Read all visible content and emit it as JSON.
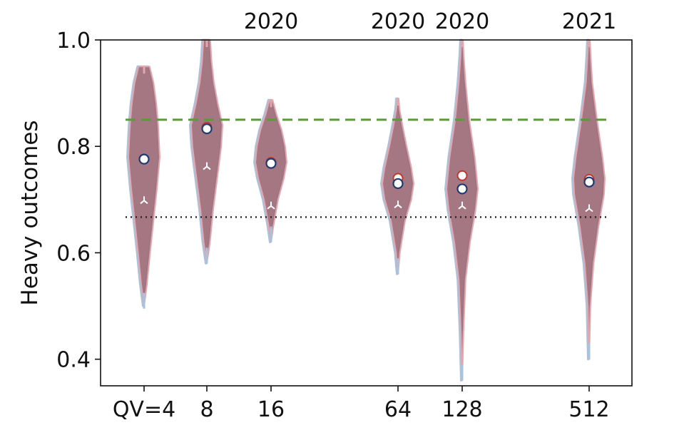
{
  "chart_data": {
    "type": "violin",
    "ylabel": "Heavy outcomes",
    "ylim": [
      0.35,
      1.0
    ],
    "yticks": [
      0.4,
      0.6,
      0.8,
      1.0
    ],
    "ytick_labels": [
      "0.4",
      "0.6",
      "0.8",
      "1.0"
    ],
    "xlabels": [
      "QV=4",
      "8",
      "16",
      "64",
      "128",
      "512"
    ],
    "year_labels": [
      "",
      "",
      "2020",
      "2020",
      "2020",
      "2021"
    ],
    "reference_lines": [
      {
        "style": "dashed",
        "color": "#5a9a3a",
        "y": 0.85
      },
      {
        "style": "dotted",
        "color": "#222222",
        "y": 0.667
      }
    ],
    "violins": [
      {
        "x_label": "QV=4",
        "min": 0.495,
        "max": 0.95,
        "profile": [
          [
            0.5,
            0.0
          ],
          [
            0.54,
            0.18
          ],
          [
            0.6,
            0.38
          ],
          [
            0.66,
            0.6
          ],
          [
            0.72,
            0.82
          ],
          [
            0.78,
            1.0
          ],
          [
            0.84,
            0.9
          ],
          [
            0.88,
            0.78
          ],
          [
            0.92,
            0.6
          ],
          [
            0.95,
            0.35
          ]
        ],
        "mean_red": 0.776,
        "mean_blue": 0.776,
        "median": 0.698
      },
      {
        "x_label": "8",
        "min": 0.58,
        "max": 1.0,
        "profile": [
          [
            0.58,
            0.0
          ],
          [
            0.62,
            0.2
          ],
          [
            0.68,
            0.4
          ],
          [
            0.74,
            0.66
          ],
          [
            0.8,
            0.92
          ],
          [
            0.84,
            1.0
          ],
          [
            0.88,
            0.7
          ],
          [
            0.92,
            0.45
          ],
          [
            0.96,
            0.3
          ],
          [
            1.0,
            0.22
          ]
        ],
        "mean_red": 0.836,
        "mean_blue": 0.833,
        "median": 0.762
      },
      {
        "x_label": "16",
        "min": 0.62,
        "max": 0.887,
        "profile": [
          [
            0.62,
            0.0
          ],
          [
            0.65,
            0.15
          ],
          [
            0.7,
            0.45
          ],
          [
            0.74,
            0.82
          ],
          [
            0.77,
            1.0
          ],
          [
            0.8,
            0.9
          ],
          [
            0.83,
            0.68
          ],
          [
            0.86,
            0.35
          ],
          [
            0.887,
            0.1
          ]
        ],
        "mean_red": 0.77,
        "mean_blue": 0.768,
        "median": 0.688
      },
      {
        "x_label": "64",
        "min": 0.56,
        "max": 0.89,
        "profile": [
          [
            0.56,
            0.0
          ],
          [
            0.6,
            0.12
          ],
          [
            0.66,
            0.45
          ],
          [
            0.7,
            0.85
          ],
          [
            0.73,
            1.0
          ],
          [
            0.76,
            0.85
          ],
          [
            0.8,
            0.55
          ],
          [
            0.84,
            0.28
          ],
          [
            0.87,
            0.1
          ],
          [
            0.89,
            0.04
          ]
        ],
        "mean_red": 0.74,
        "mean_blue": 0.73,
        "median": 0.69
      },
      {
        "x_label": "128",
        "min": 0.36,
        "max": 1.0,
        "profile": [
          [
            0.36,
            0.0
          ],
          [
            0.45,
            0.08
          ],
          [
            0.55,
            0.22
          ],
          [
            0.62,
            0.5
          ],
          [
            0.68,
            0.85
          ],
          [
            0.72,
            1.0
          ],
          [
            0.78,
            0.8
          ],
          [
            0.85,
            0.45
          ],
          [
            0.92,
            0.22
          ],
          [
            0.97,
            0.1
          ],
          [
            1.0,
            0.05
          ]
        ],
        "mean_red": 0.745,
        "mean_blue": 0.72,
        "median": 0.688
      },
      {
        "x_label": "512",
        "min": 0.4,
        "max": 1.0,
        "profile": [
          [
            0.4,
            0.0
          ],
          [
            0.5,
            0.08
          ],
          [
            0.58,
            0.28
          ],
          [
            0.65,
            0.6
          ],
          [
            0.71,
            0.95
          ],
          [
            0.74,
            1.0
          ],
          [
            0.78,
            0.85
          ],
          [
            0.85,
            0.5
          ],
          [
            0.92,
            0.2
          ],
          [
            0.97,
            0.1
          ],
          [
            1.0,
            0.05
          ]
        ],
        "mean_red": 0.738,
        "mean_blue": 0.733,
        "median": 0.683
      }
    ],
    "colors": {
      "violin_fill": "#9e6b78",
      "violin_edge_red": "#e3a6ad",
      "violin_edge_blue": "#a9c2dd",
      "mean_red": "#c0392b",
      "mean_blue": "#1f3b73",
      "median_marker": "#ffffff"
    }
  }
}
